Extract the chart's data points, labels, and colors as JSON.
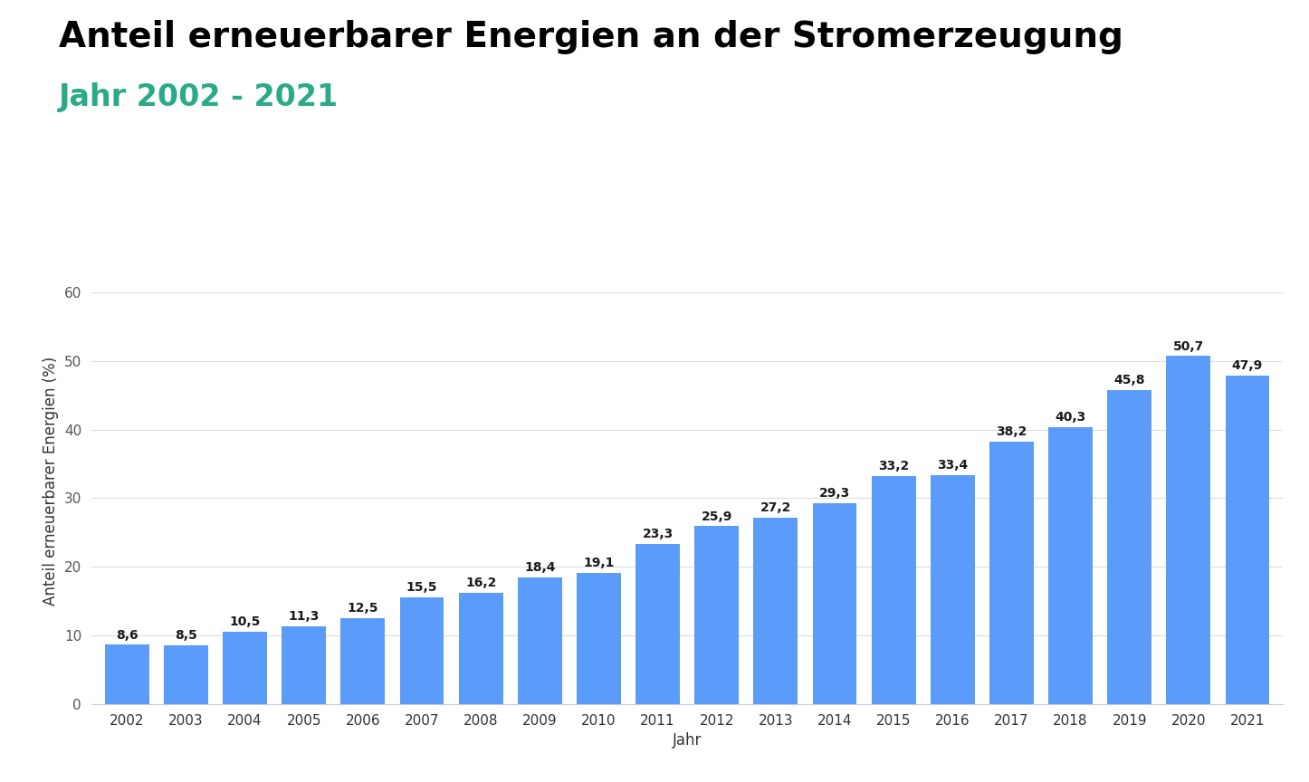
{
  "title_line1": "Anteil erneuerbarer Energien an der Stromerzeugung",
  "title_line2": "Jahr 2002 - 2021",
  "title_color": "#000000",
  "subtitle_color": "#2aaa88",
  "xlabel": "Jahr",
  "ylabel": "Anteil erneuerbarer Energien (%)",
  "years": [
    2002,
    2003,
    2004,
    2005,
    2006,
    2007,
    2008,
    2009,
    2010,
    2011,
    2012,
    2013,
    2014,
    2015,
    2016,
    2017,
    2018,
    2019,
    2020,
    2021
  ],
  "values": [
    8.6,
    8.5,
    10.5,
    11.3,
    12.5,
    15.5,
    16.2,
    18.4,
    19.1,
    23.3,
    25.9,
    27.2,
    29.3,
    33.2,
    33.4,
    38.2,
    40.3,
    45.8,
    50.7,
    47.9
  ],
  "bar_color": "#5b9bfa",
  "background_color": "#ffffff",
  "ylim": [
    0,
    65
  ],
  "yticks": [
    0,
    10,
    20,
    30,
    40,
    50,
    60
  ],
  "grid_color": "#dddddd",
  "bar_label_fontsize": 10,
  "title_fontsize": 28,
  "subtitle_fontsize": 24,
  "axis_label_fontsize": 12,
  "tick_fontsize": 11
}
